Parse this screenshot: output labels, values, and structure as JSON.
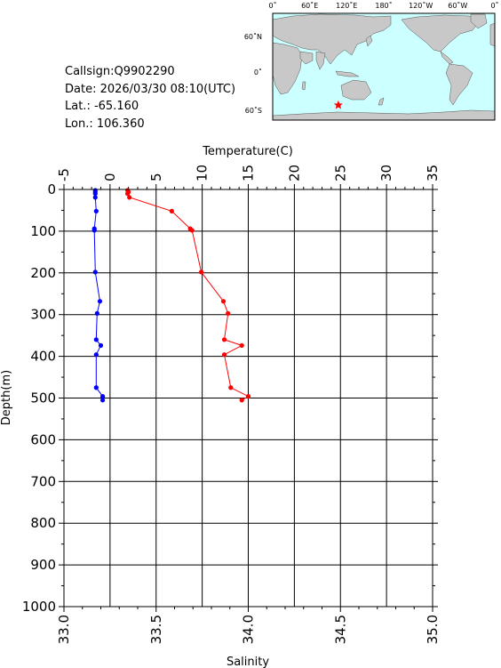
{
  "info": {
    "callsign": "Callsign:Q9902290",
    "date": "Date:  2026/03/30 08:10(UTC)",
    "lat": "Lat.:  -65.160",
    "lon": "Lon.:  106.360"
  },
  "map": {
    "top_labels": [
      "0˚",
      "60˚E",
      "120˚E",
      "180˚",
      "120˚W",
      "60˚W",
      "0˚"
    ],
    "side_labels": [
      "60˚N",
      "0˚",
      "60˚S"
    ],
    "ocean_color": "#ccffff",
    "land_color": "#c8c8c8",
    "marker_color": "#ff0000",
    "marker_icon": "star-icon",
    "marker_lat": -65.16,
    "marker_lon": 106.36
  },
  "chart_data": {
    "type": "line",
    "title": "",
    "ylabel": "Depth(m)",
    "ylim": [
      1000,
      0
    ],
    "yticks": [
      "0",
      "100",
      "200",
      "300",
      "400",
      "500",
      "600",
      "700",
      "800",
      "900",
      "1000"
    ],
    "x_top_label": "Temperature(C)",
    "x_top_lim": [
      -5,
      35
    ],
    "x_top_ticks": [
      "-5",
      "0",
      "5",
      "10",
      "15",
      "20",
      "25",
      "30",
      "35"
    ],
    "x_bottom_label": "Salinity",
    "x_bottom_lim": [
      33.0,
      35.0
    ],
    "x_bottom_ticks": [
      "33.0",
      "33.5",
      "34.0",
      "34.5",
      "35.0"
    ],
    "grid": true,
    "series": [
      {
        "axis": "top",
        "color": "#ff0000",
        "points": [
          [
            1.9,
            2
          ],
          [
            2.0,
            6
          ],
          [
            1.9,
            10
          ],
          [
            2.1,
            19
          ],
          [
            6.7,
            52
          ],
          [
            8.7,
            94
          ],
          [
            8.9,
            98
          ],
          [
            9.9,
            198
          ],
          [
            12.3,
            268
          ],
          [
            12.8,
            297
          ],
          [
            12.4,
            360
          ],
          [
            14.3,
            374
          ],
          [
            12.4,
            396
          ],
          [
            13.1,
            475
          ],
          [
            15.0,
            496
          ],
          [
            14.3,
            505
          ]
        ]
      },
      {
        "axis": "bottom",
        "color": "#0000ff",
        "points": [
          [
            33.17,
            2
          ],
          [
            33.17,
            6
          ],
          [
            33.17,
            10
          ],
          [
            33.17,
            19
          ],
          [
            33.175,
            52
          ],
          [
            33.165,
            94
          ],
          [
            33.165,
            98
          ],
          [
            33.17,
            198
          ],
          [
            33.195,
            268
          ],
          [
            33.18,
            297
          ],
          [
            33.175,
            360
          ],
          [
            33.2,
            374
          ],
          [
            33.175,
            396
          ],
          [
            33.175,
            475
          ],
          [
            33.21,
            496
          ],
          [
            33.21,
            505
          ]
        ]
      }
    ]
  }
}
